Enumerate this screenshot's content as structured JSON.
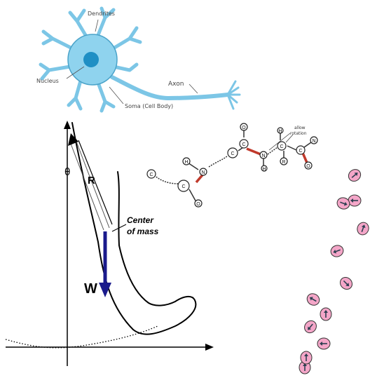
{
  "neuron": {
    "dendrites_label": "Dendrites",
    "nucleus_label": "Nucleus",
    "axon_label": "Axon",
    "soma_label": "Soma (Cell Body)",
    "fill_color": "#8fd3ee",
    "nucleus_color": "#1f8fc4"
  },
  "leg": {
    "theta_label": "θ",
    "r_label": "R",
    "center_label_line1": "Center",
    "center_label_line2": "of mass",
    "w_label": "W",
    "arrow_color": "#1a1a8c"
  },
  "molecule": {
    "atoms": [
      {
        "label": "C"
      },
      {
        "label": "C"
      },
      {
        "label": "O"
      },
      {
        "label": "H"
      },
      {
        "label": "N"
      },
      {
        "label": "C"
      },
      {
        "label": "C"
      },
      {
        "label": "O"
      },
      {
        "label": "N"
      },
      {
        "label": "H"
      },
      {
        "label": "C"
      },
      {
        "label": "H"
      },
      {
        "label": "R"
      },
      {
        "label": "C"
      },
      {
        "label": "O"
      },
      {
        "label": "N"
      }
    ],
    "annotation_line1": "allow",
    "annotation_line2": "rotation",
    "bond_color": "#c0392b"
  },
  "cells": {
    "fill_color": "#f4a6c8",
    "arrow_color": "#2c3e50",
    "count": 12
  }
}
